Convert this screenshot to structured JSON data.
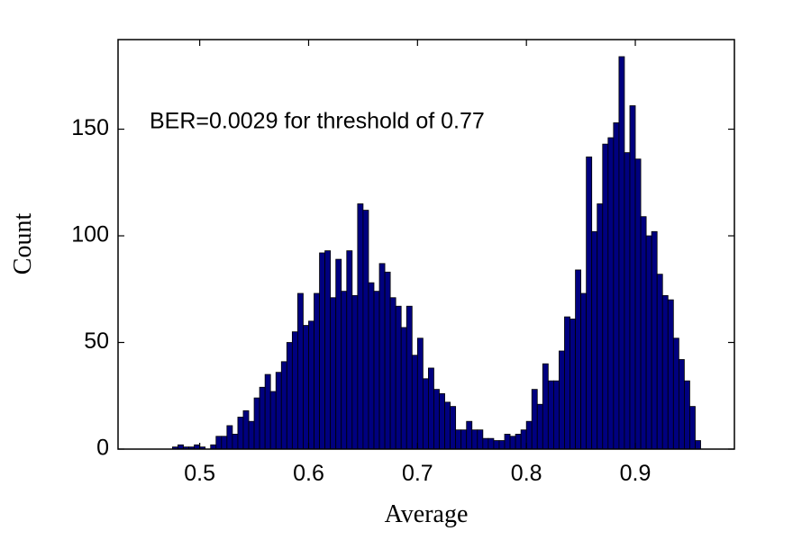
{
  "chart_data": {
    "type": "histogram",
    "xlabel": "Average",
    "ylabel": "Count",
    "annotation": "BER=0.0029 for threshold of 0.77",
    "color": "#00007f",
    "edgecolor": "#000000",
    "bins": [
      0.475,
      0.48,
      0.485,
      0.49,
      0.495,
      0.5,
      0.505,
      0.51,
      0.515,
      0.52,
      0.525,
      0.53,
      0.535,
      0.54,
      0.545,
      0.55,
      0.555,
      0.56,
      0.565,
      0.57,
      0.575,
      0.58,
      0.585,
      0.59,
      0.595,
      0.6,
      0.605,
      0.61,
      0.615,
      0.62,
      0.625,
      0.63,
      0.635,
      0.64,
      0.645,
      0.65,
      0.655,
      0.66,
      0.665,
      0.67,
      0.675,
      0.68,
      0.685,
      0.69,
      0.695,
      0.7,
      0.705,
      0.71,
      0.715,
      0.72,
      0.725,
      0.73,
      0.735,
      0.74,
      0.745,
      0.75,
      0.755,
      0.76,
      0.765,
      0.77,
      0.775,
      0.78,
      0.785,
      0.79,
      0.795,
      0.8,
      0.805,
      0.81,
      0.815,
      0.82,
      0.825,
      0.83,
      0.835,
      0.84,
      0.845,
      0.85,
      0.855,
      0.86,
      0.865,
      0.87,
      0.875,
      0.88,
      0.885,
      0.89,
      0.895,
      0.9,
      0.905,
      0.91,
      0.915,
      0.92,
      0.925,
      0.93,
      0.935,
      0.94,
      0.945,
      0.95,
      0.955,
      0.96
    ],
    "values": [
      1,
      2,
      1,
      1,
      2,
      1,
      0,
      2,
      6,
      6,
      11,
      7,
      15,
      18,
      13,
      24,
      29,
      35,
      27,
      36,
      41,
      50,
      55,
      73,
      58,
      60,
      73,
      92,
      93,
      71,
      89,
      74,
      93,
      72,
      115,
      112,
      78,
      74,
      87,
      83,
      71,
      67,
      57,
      67,
      44,
      52,
      33,
      38,
      28,
      26,
      22,
      20,
      9,
      9,
      13,
      9,
      9,
      5,
      5,
      4,
      4,
      7,
      6,
      7,
      9,
      13,
      28,
      21,
      40,
      32,
      32,
      46,
      62,
      61,
      84,
      73,
      137,
      102,
      115,
      143,
      146,
      153,
      184,
      139,
      161,
      136,
      109,
      100,
      102,
      82,
      72,
      70,
      52,
      42,
      32,
      20,
      4
    ],
    "xlim": [
      0.425,
      0.991
    ],
    "ylim": [
      0,
      192
    ],
    "xticks": [
      0.5,
      0.6,
      0.7,
      0.8,
      0.9
    ],
    "yticks": [
      0,
      50,
      100,
      150
    ]
  }
}
